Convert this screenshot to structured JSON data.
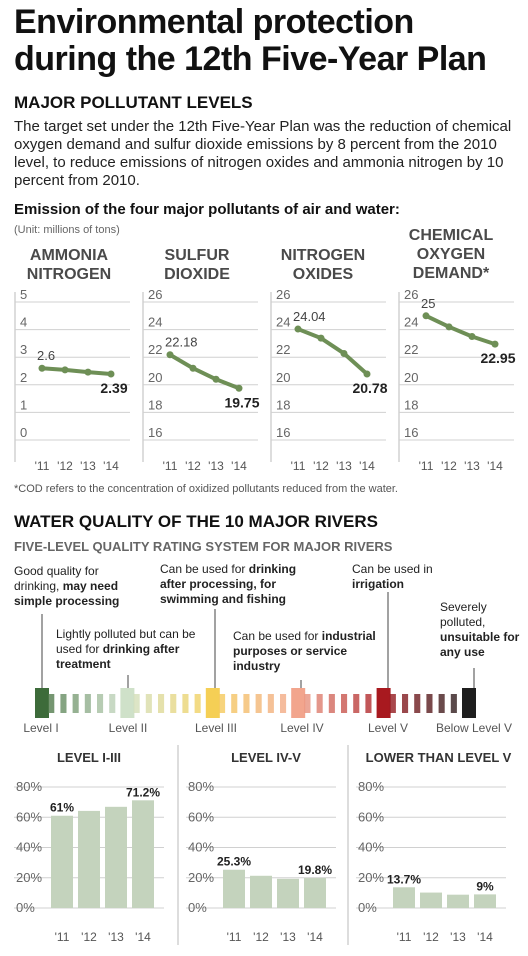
{
  "title": "Environmental protection during the 12th Five-Year Plan",
  "section1": {
    "heading": "MAJOR POLLUTANT LEVELS",
    "intro": "The target set under the 12th Five-Year Plan was the reduction of chemical oxygen demand and sulfur dioxide emissions by 8 percent from the 2010 level, to reduce emissions of nitrogen oxides and ammonia nitrogen by 10 percent from 2010.",
    "subtitle": "Emission of the four major pollutants of air and water:",
    "unit": "(Unit: millions of tons)",
    "footnote": "*COD refers to the concentration of oxidized pollutants reduced from the water."
  },
  "section2": {
    "heading": "WATER QUALITY OF THE 10 MAJOR RIVERS",
    "subtitle": "FIVE-LEVEL QUALITY RATING SYSTEM FOR MAJOR RIVERS",
    "levels": [
      "Level I",
      "Level II",
      "Level III",
      "Level IV",
      "Level V",
      "Below Level V"
    ],
    "level_colors": [
      "#3d6b3a",
      "#cfe1c9",
      "#f5cf55",
      "#f2a58d",
      "#a8191f",
      "#1e1e1e"
    ],
    "descriptions": {
      "d1": {
        "a": "Good quality for drinking, ",
        "b": "may need simple processing"
      },
      "d2": {
        "a": "Lightly polluted but can be used for ",
        "b": "drinking after treatment"
      },
      "d3": {
        "a": "Can be used for ",
        "b": "drinking after processing, for swimming and fishing"
      },
      "d4": {
        "a": "Can be used for ",
        "b": "industrial purposes or service industry"
      },
      "d5": {
        "a": "Can be used in ",
        "b": "irrigation"
      },
      "d6": {
        "a": "Severely polluted, ",
        "b": "unsuitable for any use"
      }
    }
  },
  "line_x_labels": [
    "'11",
    "'12",
    "'13",
    "'14"
  ],
  "bar_x_labels": [
    "'11",
    "'12",
    "'13",
    "'14"
  ],
  "chart_data": [
    {
      "type": "line",
      "title": "AMMONIA NITROGEN",
      "x": [
        "'11",
        "'12",
        "'13",
        "'14"
      ],
      "values": [
        2.6,
        2.54,
        2.46,
        2.39
      ],
      "ylim": [
        0,
        5
      ],
      "yticks": [
        0,
        1,
        2,
        3,
        4,
        5
      ],
      "label_first": "2.6",
      "label_last": "2.39",
      "color": "#6e8f56"
    },
    {
      "type": "line",
      "title": "SULFUR DIOXIDE",
      "x": [
        "'11",
        "'12",
        "'13",
        "'14"
      ],
      "values": [
        22.18,
        21.2,
        20.4,
        19.75
      ],
      "ylim": [
        16,
        26
      ],
      "yticks": [
        16,
        18,
        20,
        22,
        24,
        26
      ],
      "label_first": "22.18",
      "label_last": "19.75",
      "color": "#6e8f56"
    },
    {
      "type": "line",
      "title": "NITROGEN OXIDES",
      "x": [
        "'11",
        "'12",
        "'13",
        "'14"
      ],
      "values": [
        24.04,
        23.38,
        22.27,
        20.78
      ],
      "ylim": [
        16,
        26
      ],
      "yticks": [
        16,
        18,
        20,
        22,
        24,
        26
      ],
      "label_first": "24.04",
      "label_last": "20.78",
      "color": "#6e8f56"
    },
    {
      "type": "line",
      "title": "CHEMICAL OXYGEN DEMAND*",
      "x": [
        "'11",
        "'12",
        "'13",
        "'14"
      ],
      "values": [
        25,
        24.2,
        23.5,
        22.95
      ],
      "ylim": [
        16,
        26
      ],
      "yticks": [
        16,
        18,
        20,
        22,
        24,
        26
      ],
      "label_first": "25",
      "label_last": "22.95",
      "color": "#6e8f56"
    },
    {
      "type": "bar",
      "title": "LEVEL I-III",
      "categories": [
        "'11",
        "'12",
        "'13",
        "'14"
      ],
      "values": [
        61,
        64.2,
        66.9,
        71.2
      ],
      "ylim": [
        0,
        80
      ],
      "yticks": [
        "0%",
        "20%",
        "40%",
        "60%",
        "80%"
      ],
      "label_first": "61%",
      "label_last": "71.2%",
      "color": "#c4d3bd"
    },
    {
      "type": "bar",
      "title": "LEVEL IV-V",
      "categories": [
        "'11",
        "'12",
        "'13",
        "'14"
      ],
      "values": [
        25.3,
        21.3,
        19.3,
        19.8
      ],
      "ylim": [
        0,
        80
      ],
      "yticks": [
        "0%",
        "20%",
        "40%",
        "60%",
        "80%"
      ],
      "label_first": "25.3%",
      "label_last": "19.8%",
      "color": "#c4d3bd"
    },
    {
      "type": "bar",
      "title": "LOWER THAN LEVEL V",
      "categories": [
        "'11",
        "'12",
        "'13",
        "'14"
      ],
      "values": [
        13.7,
        10.2,
        8.8,
        9
      ],
      "ylim": [
        0,
        80
      ],
      "yticks": [
        "0%",
        "20%",
        "40%",
        "60%",
        "80%"
      ],
      "label_first": "13.7%",
      "label_last": "9%",
      "color": "#c4d3bd"
    }
  ]
}
